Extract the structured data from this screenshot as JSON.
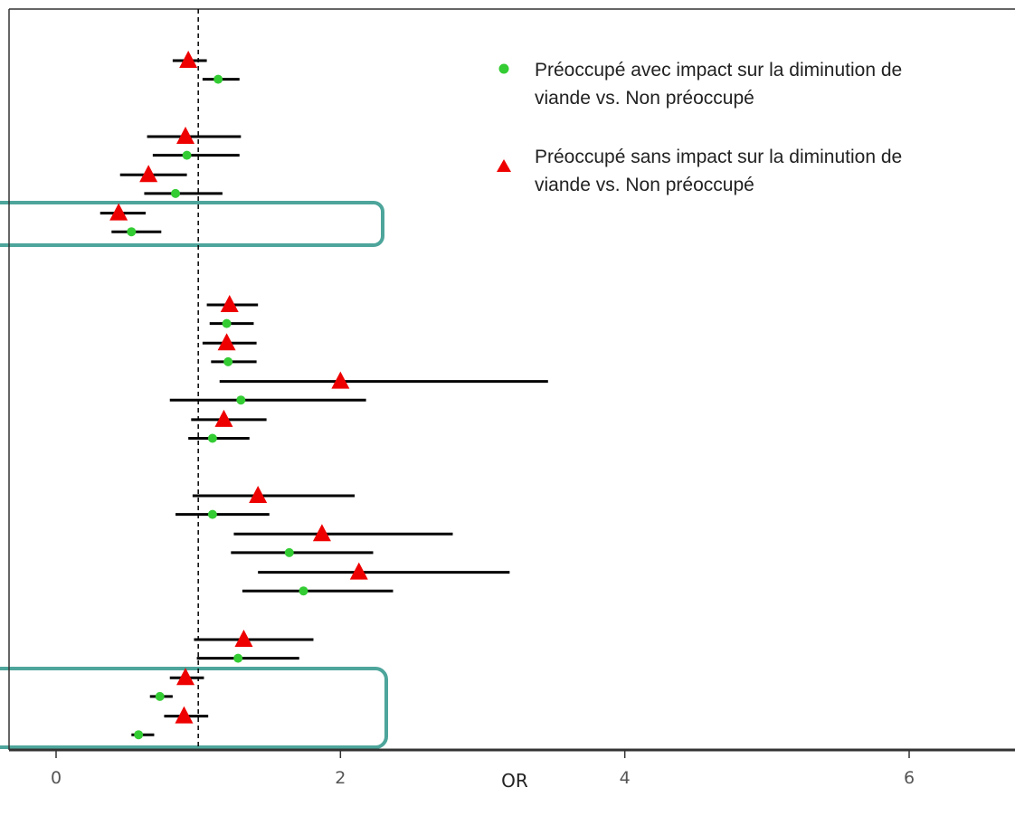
{
  "chart_data": {
    "type": "scatter",
    "subtype": "forest-plot",
    "xlabel": "OR",
    "xlim": [
      -0.18,
      6.72
    ],
    "x_ticks": [
      0,
      2,
      4,
      6
    ],
    "reference_line": 1,
    "grid": false,
    "legend_position": "top-right",
    "colors": {
      "circle": "#33cc33",
      "triangle": "#ee0000",
      "ci": "#000000",
      "highlight": "#4da59b",
      "axis": "#333333"
    },
    "series": [
      {
        "name": "Préoccupé avec impact sur la diminution de viande vs. Non préoccupé",
        "marker": "circle",
        "points": [
          {
            "group": 1,
            "or": 1.14,
            "low": 1.03,
            "high": 1.29
          },
          {
            "group": 2,
            "or": 0.92,
            "low": 0.68,
            "high": 1.29
          },
          {
            "group": 2,
            "or": 0.84,
            "low": 0.62,
            "high": 1.17
          },
          {
            "group": 2,
            "or": 0.53,
            "low": 0.39,
            "high": 0.74
          },
          {
            "group": 3,
            "or": 1.2,
            "low": 1.08,
            "high": 1.39
          },
          {
            "group": 3,
            "or": 1.21,
            "low": 1.09,
            "high": 1.41
          },
          {
            "group": 3,
            "or": 1.3,
            "low": 0.8,
            "high": 2.18
          },
          {
            "group": 3,
            "or": 1.1,
            "low": 0.93,
            "high": 1.36
          },
          {
            "group": 4,
            "or": 1.1,
            "low": 0.84,
            "high": 1.5
          },
          {
            "group": 4,
            "or": 1.64,
            "low": 1.23,
            "high": 2.23
          },
          {
            "group": 4,
            "or": 1.74,
            "low": 1.31,
            "high": 2.37
          },
          {
            "group": 5,
            "or": 1.28,
            "low": 0.99,
            "high": 1.71
          },
          {
            "group": 5,
            "or": 0.73,
            "low": 0.66,
            "high": 0.82
          },
          {
            "group": 5,
            "or": 0.58,
            "low": 0.53,
            "high": 0.69
          }
        ]
      },
      {
        "name": "Préoccupé sans impact sur la diminution de viande vs. Non préoccupé",
        "marker": "triangle",
        "points": [
          {
            "group": 1,
            "or": 0.93,
            "low": 0.82,
            "high": 1.06
          },
          {
            "group": 2,
            "or": 0.91,
            "low": 0.64,
            "high": 1.3
          },
          {
            "group": 2,
            "or": 0.65,
            "low": 0.45,
            "high": 0.92
          },
          {
            "group": 2,
            "or": 0.44,
            "low": 0.31,
            "high": 0.63
          },
          {
            "group": 3,
            "or": 1.22,
            "low": 1.06,
            "high": 1.42
          },
          {
            "group": 3,
            "or": 1.2,
            "low": 1.03,
            "high": 1.41
          },
          {
            "group": 3,
            "or": 2.0,
            "low": 1.15,
            "high": 3.46
          },
          {
            "group": 3,
            "or": 1.18,
            "low": 0.95,
            "high": 1.48
          },
          {
            "group": 4,
            "or": 1.42,
            "low": 0.96,
            "high": 2.1
          },
          {
            "group": 4,
            "or": 1.87,
            "low": 1.25,
            "high": 2.79
          },
          {
            "group": 4,
            "or": 2.13,
            "low": 1.42,
            "high": 3.19
          },
          {
            "group": 5,
            "or": 1.32,
            "low": 0.97,
            "high": 1.81
          },
          {
            "group": 5,
            "or": 0.91,
            "low": 0.8,
            "high": 1.04
          },
          {
            "group": 5,
            "or": 0.9,
            "low": 0.76,
            "high": 1.07
          }
        ]
      }
    ]
  }
}
